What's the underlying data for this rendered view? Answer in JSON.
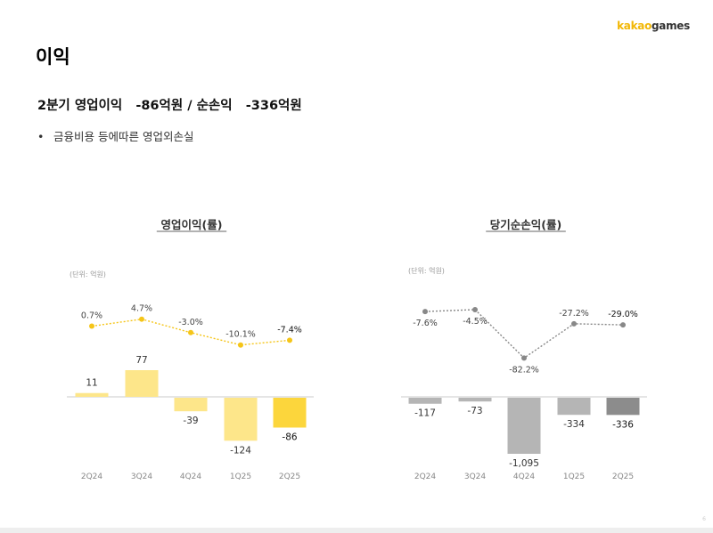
{
  "brand": {
    "part1": "kakao",
    "part2": "games"
  },
  "page_title": "이익",
  "headline": "2분기 영업이익   -86억원 / 순손익   -336억원",
  "bullet": "금융비용 등에따른 영업외손실",
  "page_number": "6",
  "chart_data": [
    {
      "type": "bar",
      "title": "영업이익(률)",
      "unit": "(단위: 억원)",
      "categories": [
        "2Q24",
        "3Q24",
        "4Q24",
        "1Q25",
        "2Q25"
      ],
      "values": [
        11,
        77,
        -39,
        -124,
        -86
      ],
      "value_labels": [
        "11",
        "77",
        "-39",
        "-124",
        "-86"
      ],
      "line": {
        "name": "영업이익률",
        "values": [
          0.7,
          4.7,
          -3.0,
          -10.1,
          -7.4
        ],
        "labels": [
          "0.7%",
          "4.7%",
          "-3.0%",
          "-10.1%",
          "-7.4%"
        ]
      },
      "colors": {
        "bar": "#fde68a",
        "bar_highlight": "#fcd63c",
        "line": "#f5c518"
      }
    },
    {
      "type": "bar",
      "title": "당기순손익(률)",
      "unit": "(단위: 억원)",
      "categories": [
        "2Q24",
        "3Q24",
        "4Q24",
        "1Q25",
        "2Q25"
      ],
      "values": [
        -117,
        -73,
        -1095,
        -334,
        -336
      ],
      "value_labels": [
        "-117",
        "-73",
        "-1,095",
        "-334",
        "-336"
      ],
      "line": {
        "name": "당기순손익률",
        "values": [
          -7.6,
          -4.5,
          -82.2,
          -27.2,
          -29.0
        ],
        "labels": [
          "-7.6%",
          "-4.5%",
          "-82.2%",
          "-27.2%",
          "-29.0%"
        ]
      },
      "colors": {
        "bar": "#b5b5b5",
        "bar_highlight": "#8c8c8c",
        "line": "#888888"
      }
    }
  ]
}
